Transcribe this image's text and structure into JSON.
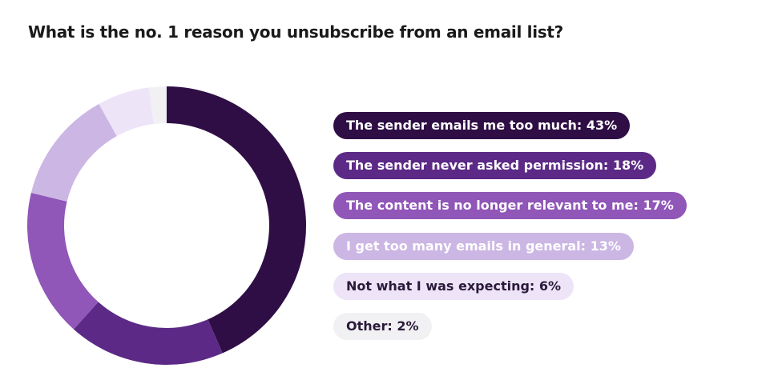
{
  "chart_data": {
    "type": "donut",
    "title": "What is the no. 1 reason you unsubscribe from an email list?",
    "categories": [
      "The sender emails me too much: 43%",
      "The sender never asked permission: 18%",
      "The content is no longer relevant to me: 17%",
      "I get too many emails in general: 13%",
      "Not what I was expecting: 6%",
      "Other: 2%"
    ],
    "values": [
      43,
      18,
      17,
      13,
      6,
      2
    ],
    "colors": [
      "#2f0e45",
      "#5c2a86",
      "#9056b8",
      "#cbb6e4",
      "#ede4f8",
      "#f1f0f3"
    ]
  }
}
